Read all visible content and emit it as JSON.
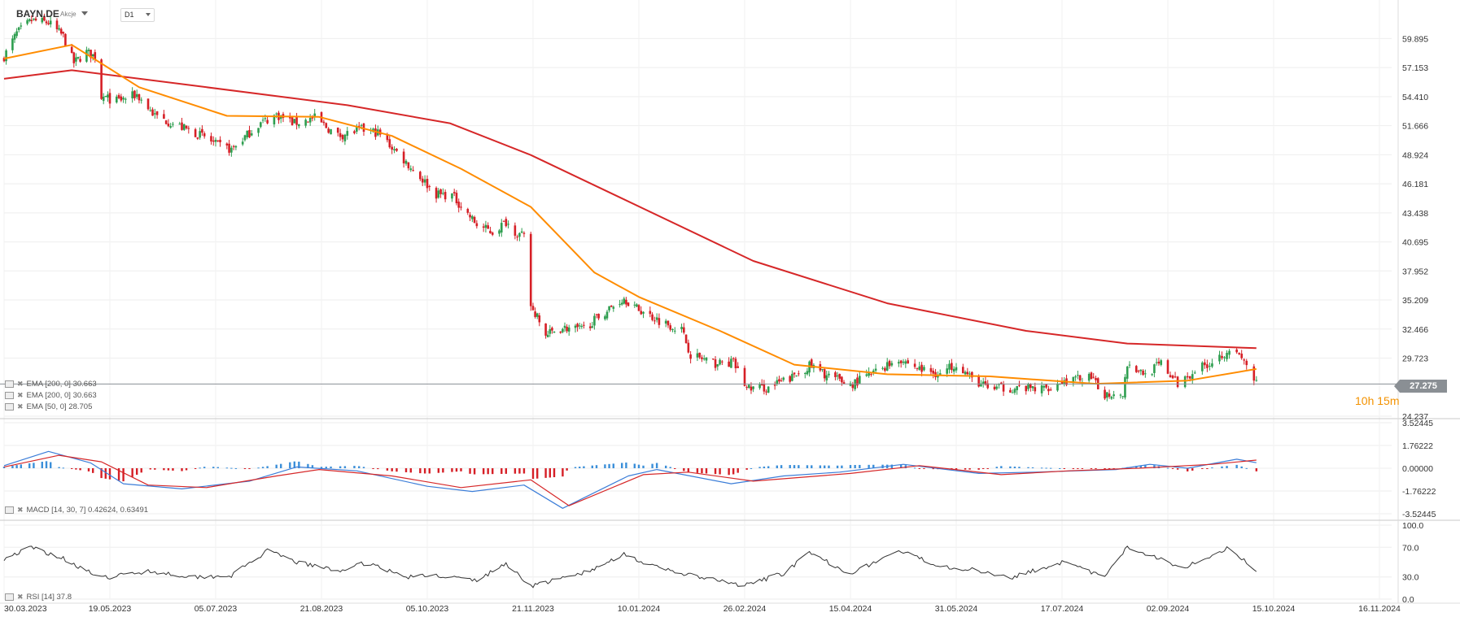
{
  "header": {
    "symbol": "BAYN.DE",
    "asset_type": "Akcje",
    "timeframe": "D1"
  },
  "legends": {
    "main": [
      {
        "label": "EMA [200, 0] 30.663",
        "color": "#d62728"
      },
      {
        "label": "EMA [200, 0] 30.663",
        "color": "#d62728"
      },
      {
        "label": "EMA [50, 0] 28.705",
        "color": "#ff8c00"
      }
    ],
    "macd": "MACD [14, 30, 7] 0.42624, 0.63491",
    "rsi": "RSI [14] 37.8"
  },
  "current_price": "27.275",
  "countdown": {
    "h": "10",
    "h_unit": "h",
    "m": "15",
    "m_unit": "m"
  },
  "colors": {
    "up": "#2e9e4f",
    "down": "#d61f26",
    "ema200": "#d62728",
    "ema50": "#ff8c00",
    "macd_line": "#3b7dd8",
    "signal_line": "#d62728",
    "hist_up": "#3b8fd9",
    "hist_down": "#d61f26",
    "rsi_line": "#333333",
    "grid": "#eeeeee"
  },
  "chart_data": [
    {
      "type": "candlestick",
      "panel": "price",
      "y_ticks": [
        "59.895",
        "57.153",
        "54.410",
        "51.666",
        "48.924",
        "46.181",
        "43.438",
        "40.695",
        "37.952",
        "35.209",
        "32.466",
        "29.723",
        "24.237"
      ],
      "ylim": [
        24.237,
        62.0
      ],
      "x_ticks": [
        "30.03.2023",
        "19.05.2023",
        "05.07.2023",
        "21.08.2023",
        "05.10.2023",
        "21.11.2023",
        "10.01.2024",
        "26.02.2024",
        "15.04.2024",
        "31.05.2024",
        "17.07.2024",
        "02.09.2024",
        "15.10.2024",
        "16.11.2024"
      ],
      "close_anchors": [
        {
          "date": "2023-03-30",
          "close": 58.2
        },
        {
          "date": "2023-04-05",
          "close": 60.4
        },
        {
          "date": "2023-04-12",
          "close": 61.6
        },
        {
          "date": "2023-04-20",
          "close": 61.4
        },
        {
          "date": "2023-04-27",
          "close": 60.1
        },
        {
          "date": "2023-05-02",
          "close": 57.6
        },
        {
          "date": "2023-05-08",
          "close": 58.6
        },
        {
          "date": "2023-05-12",
          "close": 58.2
        },
        {
          "date": "2023-05-15",
          "close": 54.4
        },
        {
          "date": "2023-05-22",
          "close": 54.0
        },
        {
          "date": "2023-05-31",
          "close": 54.6
        },
        {
          "date": "2023-06-08",
          "close": 52.6
        },
        {
          "date": "2023-06-19",
          "close": 51.6
        },
        {
          "date": "2023-06-30",
          "close": 50.6
        },
        {
          "date": "2023-07-05",
          "close": 49.9
        },
        {
          "date": "2023-07-12",
          "close": 49.4
        },
        {
          "date": "2023-07-24",
          "close": 51.8
        },
        {
          "date": "2023-08-01",
          "close": 52.7
        },
        {
          "date": "2023-08-09",
          "close": 51.9
        },
        {
          "date": "2023-08-18",
          "close": 52.4
        },
        {
          "date": "2023-08-28",
          "close": 50.7
        },
        {
          "date": "2023-09-07",
          "close": 51.3
        },
        {
          "date": "2023-09-14",
          "close": 51.0
        },
        {
          "date": "2023-09-21",
          "close": 49.4
        },
        {
          "date": "2023-10-02",
          "close": 46.8
        },
        {
          "date": "2023-10-09",
          "close": 45.2
        },
        {
          "date": "2023-10-16",
          "close": 45.1
        },
        {
          "date": "2023-10-20",
          "close": 44.1
        },
        {
          "date": "2023-10-27",
          "close": 42.3
        },
        {
          "date": "2023-11-03",
          "close": 41.6
        },
        {
          "date": "2023-11-09",
          "close": 42.6
        },
        {
          "date": "2023-11-14",
          "close": 41.5
        },
        {
          "date": "2023-11-17",
          "close": 41.1
        },
        {
          "date": "2023-11-20",
          "close": 34.7
        },
        {
          "date": "2023-11-27",
          "close": 31.9
        },
        {
          "date": "2023-12-05",
          "close": 32.6
        },
        {
          "date": "2023-12-14",
          "close": 32.4
        },
        {
          "date": "2023-12-22",
          "close": 33.6
        },
        {
          "date": "2024-01-03",
          "close": 35.4
        },
        {
          "date": "2024-01-09",
          "close": 34.4
        },
        {
          "date": "2024-01-19",
          "close": 33.3
        },
        {
          "date": "2024-01-29",
          "close": 32.4
        },
        {
          "date": "2024-02-02",
          "close": 30.1
        },
        {
          "date": "2024-02-12",
          "close": 29.2
        },
        {
          "date": "2024-02-21",
          "close": 29.3
        },
        {
          "date": "2024-02-27",
          "close": 26.9
        },
        {
          "date": "2024-03-08",
          "close": 26.9
        },
        {
          "date": "2024-03-19",
          "close": 27.9
        },
        {
          "date": "2024-03-27",
          "close": 29.0
        },
        {
          "date": "2024-04-05",
          "close": 28.0
        },
        {
          "date": "2024-04-15",
          "close": 27.2
        },
        {
          "date": "2024-04-24",
          "close": 28.2
        },
        {
          "date": "2024-05-06",
          "close": 29.7
        },
        {
          "date": "2024-05-15",
          "close": 28.7
        },
        {
          "date": "2024-05-24",
          "close": 28.2
        },
        {
          "date": "2024-05-31",
          "close": 29.3
        },
        {
          "date": "2024-06-06",
          "close": 27.9
        },
        {
          "date": "2024-06-14",
          "close": 26.9
        },
        {
          "date": "2024-06-28",
          "close": 26.9
        },
        {
          "date": "2024-07-08",
          "close": 26.8
        },
        {
          "date": "2024-07-17",
          "close": 27.5
        },
        {
          "date": "2024-07-29",
          "close": 27.9
        },
        {
          "date": "2024-08-05",
          "close": 26.3
        },
        {
          "date": "2024-08-13",
          "close": 26.5
        },
        {
          "date": "2024-08-15",
          "close": 29.2
        },
        {
          "date": "2024-08-23",
          "close": 28.2
        },
        {
          "date": "2024-08-30",
          "close": 29.2
        },
        {
          "date": "2024-09-06",
          "close": 27.3
        },
        {
          "date": "2024-09-13",
          "close": 28.6
        },
        {
          "date": "2024-09-20",
          "close": 29.4
        },
        {
          "date": "2024-09-27",
          "close": 30.6
        },
        {
          "date": "2024-10-03",
          "close": 29.4
        },
        {
          "date": "2024-10-08",
          "close": 27.3
        }
      ],
      "series": [
        {
          "name": "EMA [200, 0]",
          "color": "#d62728",
          "points": [
            {
              "date": "2023-03-30",
              "value": 56.1
            },
            {
              "date": "2023-05-01",
              "value": 56.9
            },
            {
              "date": "2023-07-01",
              "value": 55.3
            },
            {
              "date": "2023-09-01",
              "value": 53.6
            },
            {
              "date": "2023-10-15",
              "value": 51.9
            },
            {
              "date": "2023-11-20",
              "value": 48.9
            },
            {
              "date": "2024-01-01",
              "value": 44.9
            },
            {
              "date": "2024-03-01",
              "value": 38.9
            },
            {
              "date": "2024-05-01",
              "value": 34.9
            },
            {
              "date": "2024-07-01",
              "value": 32.3
            },
            {
              "date": "2024-08-15",
              "value": 31.1
            },
            {
              "date": "2024-10-08",
              "value": 30.66
            }
          ]
        },
        {
          "name": "EMA [50, 0]",
          "color": "#ff8c00",
          "points": [
            {
              "date": "2023-03-30",
              "value": 58.0
            },
            {
              "date": "2023-05-01",
              "value": 59.3
            },
            {
              "date": "2023-06-01",
              "value": 55.3
            },
            {
              "date": "2023-07-10",
              "value": 52.6
            },
            {
              "date": "2023-08-20",
              "value": 52.5
            },
            {
              "date": "2023-09-20",
              "value": 50.7
            },
            {
              "date": "2023-10-20",
              "value": 47.6
            },
            {
              "date": "2023-11-20",
              "value": 44.0
            },
            {
              "date": "2023-12-20",
              "value": 37.8
            },
            {
              "date": "2024-01-10",
              "value": 35.5
            },
            {
              "date": "2024-02-15",
              "value": 32.3
            },
            {
              "date": "2024-03-20",
              "value": 29.1
            },
            {
              "date": "2024-05-01",
              "value": 28.2
            },
            {
              "date": "2024-06-15",
              "value": 28.0
            },
            {
              "date": "2024-08-01",
              "value": 27.3
            },
            {
              "date": "2024-09-10",
              "value": 27.6
            },
            {
              "date": "2024-10-08",
              "value": 28.7
            }
          ]
        }
      ],
      "last_price": 27.275
    },
    {
      "type": "line",
      "panel": "macd",
      "title": "MACD [14, 30, 7]",
      "y_ticks": [
        "3.52445",
        "1.76222",
        "0.00000",
        "-1.76222",
        "-3.52445"
      ],
      "ylim": [
        -3.52445,
        3.52445
      ],
      "series": [
        {
          "name": "MACD",
          "color": "#3b7dd8",
          "points": [
            {
              "date": "2023-03-30",
              "value": 0.2
            },
            {
              "date": "2023-04-20",
              "value": 1.3
            },
            {
              "date": "2023-05-10",
              "value": 0.4
            },
            {
              "date": "2023-05-25",
              "value": -1.2
            },
            {
              "date": "2023-06-20",
              "value": -1.6
            },
            {
              "date": "2023-07-20",
              "value": -1.0
            },
            {
              "date": "2023-08-10",
              "value": 0.1
            },
            {
              "date": "2023-09-05",
              "value": -0.2
            },
            {
              "date": "2023-10-05",
              "value": -1.4
            },
            {
              "date": "2023-10-25",
              "value": -1.8
            },
            {
              "date": "2023-11-17",
              "value": -1.3
            },
            {
              "date": "2023-12-05",
              "value": -3.1
            },
            {
              "date": "2024-01-05",
              "value": -0.6
            },
            {
              "date": "2024-01-18",
              "value": -0.1
            },
            {
              "date": "2024-02-20",
              "value": -1.2
            },
            {
              "date": "2024-03-15",
              "value": -0.6
            },
            {
              "date": "2024-04-10",
              "value": -0.3
            },
            {
              "date": "2024-05-08",
              "value": 0.3
            },
            {
              "date": "2024-06-10",
              "value": -0.4
            },
            {
              "date": "2024-07-05",
              "value": -0.3
            },
            {
              "date": "2024-08-10",
              "value": -0.1
            },
            {
              "date": "2024-08-25",
              "value": 0.3
            },
            {
              "date": "2024-09-10",
              "value": 0.0
            },
            {
              "date": "2024-09-30",
              "value": 0.7
            },
            {
              "date": "2024-10-08",
              "value": 0.43
            }
          ]
        },
        {
          "name": "Signal",
          "color": "#d62728",
          "points": [
            {
              "date": "2023-03-30",
              "value": 0.1
            },
            {
              "date": "2023-04-25",
              "value": 1.0
            },
            {
              "date": "2023-05-15",
              "value": 0.5
            },
            {
              "date": "2023-06-05",
              "value": -1.3
            },
            {
              "date": "2023-07-01",
              "value": -1.5
            },
            {
              "date": "2023-08-01",
              "value": -0.6
            },
            {
              "date": "2023-08-20",
              "value": -0.1
            },
            {
              "date": "2023-09-20",
              "value": -0.6
            },
            {
              "date": "2023-10-20",
              "value": -1.5
            },
            {
              "date": "2023-11-20",
              "value": -0.9
            },
            {
              "date": "2023-12-08",
              "value": -2.9
            },
            {
              "date": "2024-01-12",
              "value": -0.5
            },
            {
              "date": "2024-02-01",
              "value": -0.3
            },
            {
              "date": "2024-03-01",
              "value": -1.0
            },
            {
              "date": "2024-04-15",
              "value": -0.4
            },
            {
              "date": "2024-05-15",
              "value": 0.2
            },
            {
              "date": "2024-06-20",
              "value": -0.5
            },
            {
              "date": "2024-07-20",
              "value": -0.2
            },
            {
              "date": "2024-08-20",
              "value": 0.0
            },
            {
              "date": "2024-09-20",
              "value": 0.3
            },
            {
              "date": "2024-10-08",
              "value": 0.63
            }
          ]
        }
      ]
    },
    {
      "type": "line",
      "panel": "rsi",
      "title": "RSI [14]",
      "y_ticks": [
        "100.0",
        "70.0",
        "30.0",
        "0.0"
      ],
      "ylim": [
        0,
        100
      ],
      "series": [
        {
          "name": "RSI",
          "color": "#333333",
          "points": [
            {
              "date": "2023-03-30",
              "value": 55
            },
            {
              "date": "2023-04-12",
              "value": 70
            },
            {
              "date": "2023-04-27",
              "value": 55
            },
            {
              "date": "2023-05-15",
              "value": 28
            },
            {
              "date": "2023-06-05",
              "value": 38
            },
            {
              "date": "2023-06-25",
              "value": 30
            },
            {
              "date": "2023-07-12",
              "value": 32
            },
            {
              "date": "2023-07-28",
              "value": 65
            },
            {
              "date": "2023-08-10",
              "value": 50
            },
            {
              "date": "2023-08-28",
              "value": 38
            },
            {
              "date": "2023-09-10",
              "value": 50
            },
            {
              "date": "2023-09-25",
              "value": 30
            },
            {
              "date": "2023-10-10",
              "value": 32
            },
            {
              "date": "2023-10-27",
              "value": 25
            },
            {
              "date": "2023-11-09",
              "value": 48
            },
            {
              "date": "2023-11-20",
              "value": 18
            },
            {
              "date": "2023-12-05",
              "value": 28
            },
            {
              "date": "2023-12-20",
              "value": 40
            },
            {
              "date": "2024-01-03",
              "value": 62
            },
            {
              "date": "2024-01-15",
              "value": 45
            },
            {
              "date": "2024-02-05",
              "value": 30
            },
            {
              "date": "2024-02-26",
              "value": 18
            },
            {
              "date": "2024-03-15",
              "value": 35
            },
            {
              "date": "2024-03-27",
              "value": 62
            },
            {
              "date": "2024-04-15",
              "value": 35
            },
            {
              "date": "2024-05-06",
              "value": 65
            },
            {
              "date": "2024-05-24",
              "value": 45
            },
            {
              "date": "2024-06-06",
              "value": 40
            },
            {
              "date": "2024-06-25",
              "value": 30
            },
            {
              "date": "2024-07-17",
              "value": 50
            },
            {
              "date": "2024-08-05",
              "value": 30
            },
            {
              "date": "2024-08-15",
              "value": 70
            },
            {
              "date": "2024-08-30",
              "value": 55
            },
            {
              "date": "2024-09-08",
              "value": 42
            },
            {
              "date": "2024-09-27",
              "value": 70
            },
            {
              "date": "2024-10-08",
              "value": 37.8
            }
          ]
        }
      ]
    }
  ]
}
